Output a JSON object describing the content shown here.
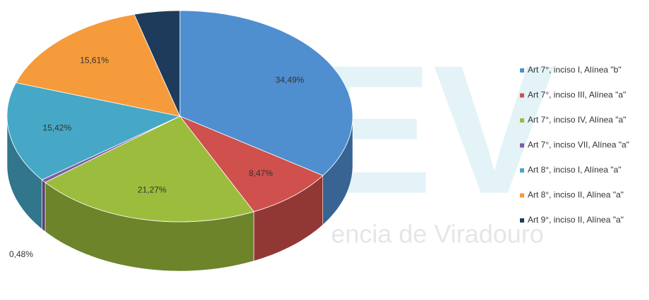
{
  "chart_data": {
    "type": "pie",
    "watermark": [
      "REV",
      "encia de Viradouro"
    ],
    "categories": [
      "Art 7°, inciso I, Alínea \"b\"",
      "Art 7°, inciso III, Alínea \"a\"",
      "Art 7°, inciso IV, Alínea \"a\"",
      "Art 7°, inciso VII, Alínea \"a\"",
      "Art 8°, inciso I, Alínea \"a\"",
      "Art 8°, inciso II, Alínea \"a\"",
      "Art 9°, inciso II, Alínea \"a\""
    ],
    "values": [
      34.49,
      8.47,
      21.27,
      0.48,
      15.42,
      15.61,
      4.26
    ],
    "value_labels": [
      "34,49%",
      "8,47%",
      "21,27%",
      "0,48%",
      "15,42%",
      "15,61%",
      null
    ],
    "colors": [
      "#4f8fd0",
      "#cf504c",
      "#9cbc3e",
      "#7c5ea4",
      "#46a8c6",
      "#f59b3b",
      "#1f3b5b"
    ],
    "legend": "right"
  }
}
